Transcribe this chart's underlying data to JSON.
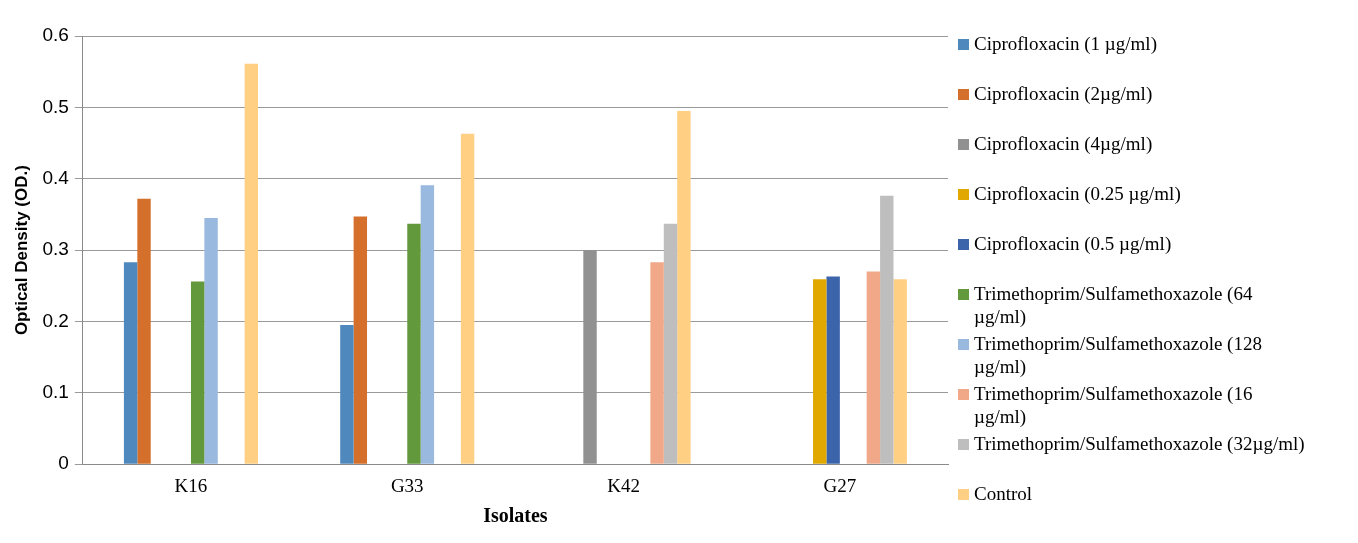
{
  "chart_data": {
    "type": "bar",
    "xlabel": "Isolates",
    "ylabel": "Optical Density (OD.)",
    "categories": [
      "K16",
      "G33",
      "K42",
      "G27"
    ],
    "series": [
      {
        "name": "Ciprofloxacin (1 µg/ml)",
        "color": "#4f88bc",
        "values": [
          0.283,
          0.195,
          null,
          null
        ]
      },
      {
        "name": "Ciprofloxacin (2µg/ml)",
        "color": "#d4702b",
        "values": [
          0.372,
          0.347,
          null,
          null
        ]
      },
      {
        "name": "Ciprofloxacin (4µg/ml)",
        "color": "#919191",
        "values": [
          null,
          null,
          0.3,
          null
        ]
      },
      {
        "name": "Ciprofloxacin (0.25 µg/ml)",
        "color": "#e0a800",
        "values": [
          null,
          null,
          null,
          0.259
        ]
      },
      {
        "name": "Ciprofloxacin (0.5 µg/ml)",
        "color": "#3b64ab",
        "values": [
          null,
          null,
          null,
          0.263
        ]
      },
      {
        "name": "Trimethoprim/Sulfamethoxazole (64 µg/ml)",
        "color": "#63993d",
        "values": [
          0.256,
          0.337,
          null,
          null
        ]
      },
      {
        "name": "Trimethoprim/Sulfamethoxazole (128 µg/ml)",
        "color": "#99b9df",
        "values": [
          0.345,
          0.391,
          null,
          null
        ]
      },
      {
        "name": "Trimethoprim/Sulfamethoxazole (16 µg/ml)",
        "color": "#f0a888",
        "values": [
          null,
          null,
          0.283,
          0.27
        ]
      },
      {
        "name": "Trimethoprim/Sulfamethoxazole (32µg/ml)",
        "color": "#bebebe",
        "values": [
          null,
          null,
          0.337,
          0.376
        ]
      },
      {
        "name": "Control",
        "color": "#ffd084",
        "values": [
          0.561,
          0.463,
          0.495,
          0.259
        ]
      }
    ],
    "ylim": [
      0,
      0.6
    ],
    "yticks": [
      0,
      0.1,
      0.2,
      0.3,
      0.4,
      0.5,
      0.6
    ],
    "grid": "y",
    "legend": "right"
  }
}
